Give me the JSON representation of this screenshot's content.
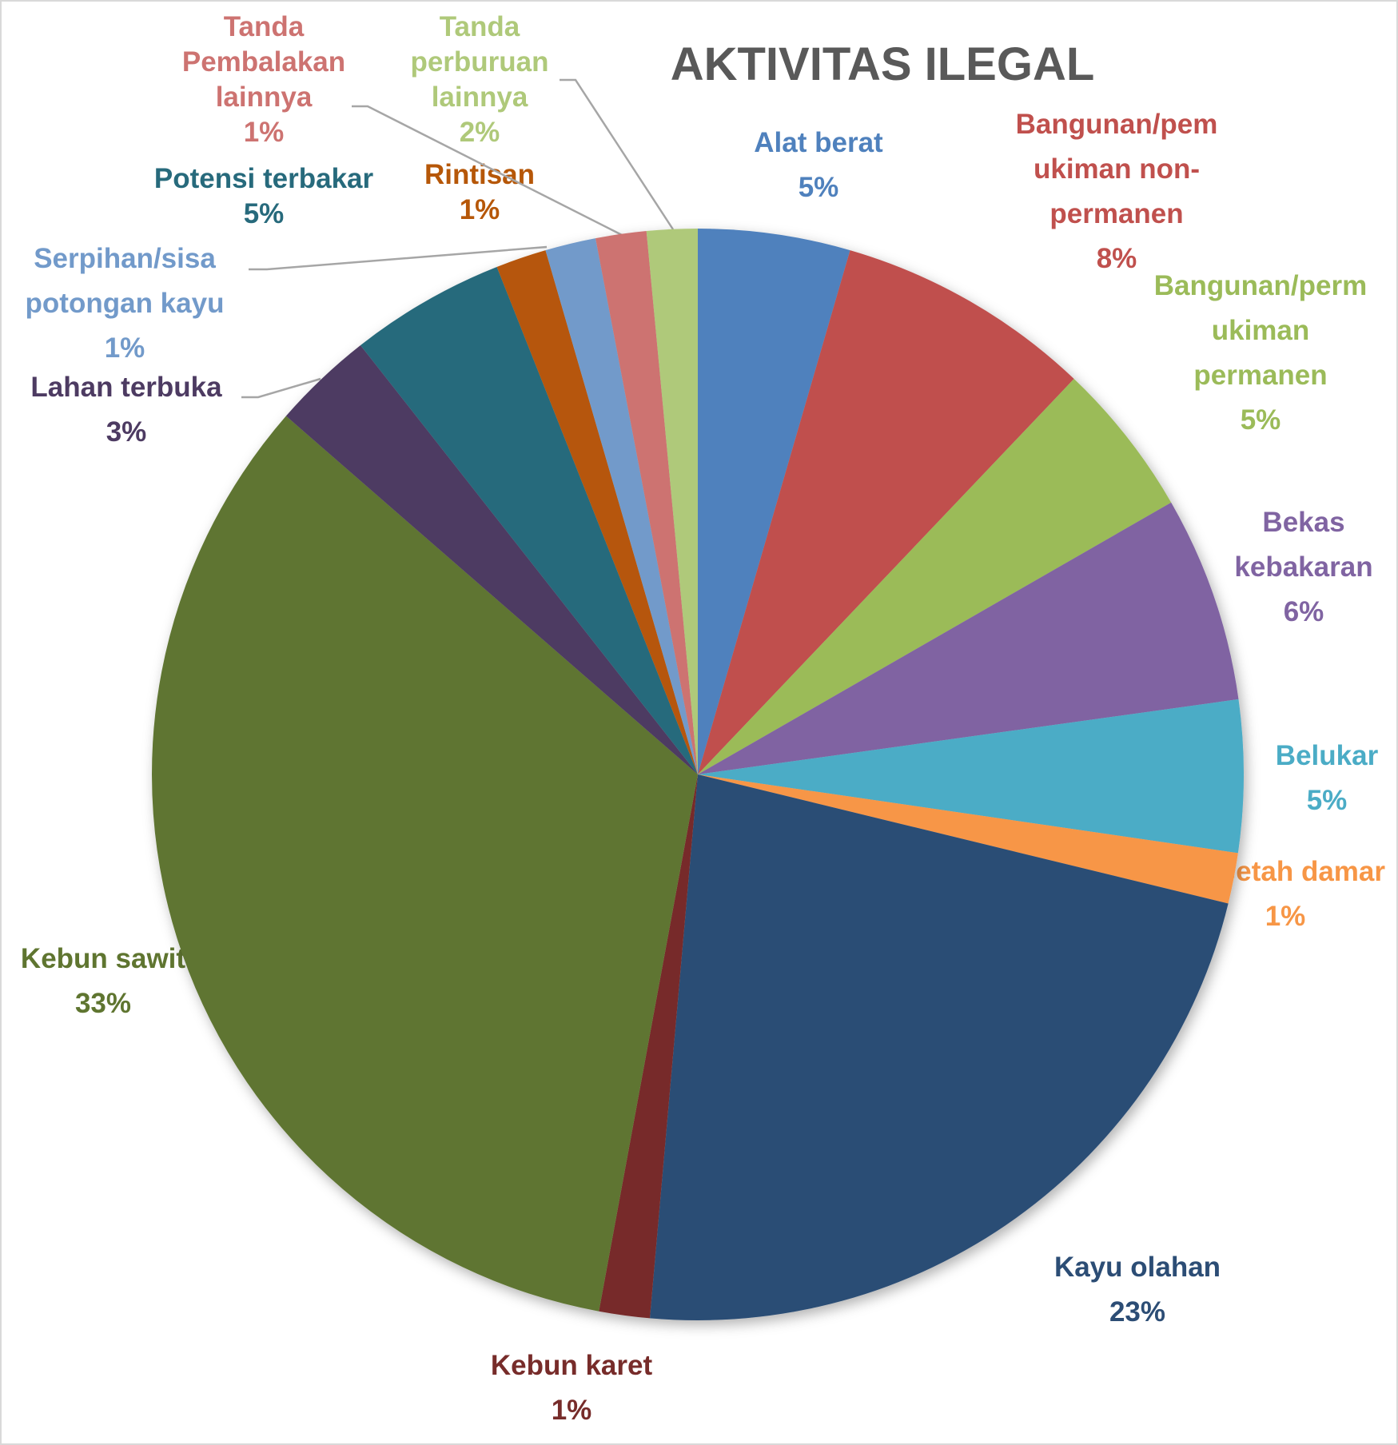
{
  "chart_data": {
    "type": "pie",
    "title": "AKTIVITAS ILEGAL",
    "start": "12 o'clock, clockwise",
    "slices": [
      {
        "label_lines": [
          "Alat berat"
        ],
        "pct_label": "5%",
        "value": 4.5,
        "color": "#4F81BD"
      },
      {
        "label_lines": [
          "Bangunan/pem",
          "ukiman non-",
          "permanen"
        ],
        "pct_label": "8%",
        "value": 7.6,
        "color": "#C0504D"
      },
      {
        "label_lines": [
          "Bangunan/perm",
          "ukiman",
          "permanen"
        ],
        "pct_label": "5%",
        "value": 4.6,
        "color": "#9BBB59"
      },
      {
        "label_lines": [
          "Bekas",
          "kebakaran"
        ],
        "pct_label": "6%",
        "value": 6.1,
        "color": "#8064A2"
      },
      {
        "label_lines": [
          "Belukar"
        ],
        "pct_label": "5%",
        "value": 4.5,
        "color": "#4BACC6"
      },
      {
        "label_lines": [
          "Getah damar"
        ],
        "pct_label": "1%",
        "value": 1.5,
        "color": "#F79646"
      },
      {
        "label_lines": [
          "Kayu olahan"
        ],
        "pct_label": "23%",
        "value": 22.6,
        "color": "#2C4D75"
      },
      {
        "label_lines": [
          "Kebun karet"
        ],
        "pct_label": "1%",
        "value": 1.5,
        "color": "#772C2A"
      },
      {
        "label_lines": [
          "Kebun sawit"
        ],
        "pct_label": "33%",
        "value": 33.5,
        "color": "#5F7530"
      },
      {
        "label_lines": [
          "Lahan terbuka"
        ],
        "pct_label": "3%",
        "value": 3.0,
        "color": "#4D3B62"
      },
      {
        "label_lines": [
          "Potensi terbakar"
        ],
        "pct_label": "5%",
        "value": 4.6,
        "color": "#276A7C"
      },
      {
        "label_lines": [
          "Rintisan"
        ],
        "pct_label": "1%",
        "value": 1.5,
        "color": "#B65708"
      },
      {
        "label_lines": [
          "Serpihan/sisa",
          "potongan kayu"
        ],
        "pct_label": "1%",
        "value": 1.5,
        "color": "#729ACA"
      },
      {
        "label_lines": [
          "Tanda",
          "Pembalakan",
          "lainnya"
        ],
        "pct_label": "1%",
        "value": 1.5,
        "color": "#CD7371"
      },
      {
        "label_lines": [
          "Tanda",
          "perburuan",
          "lainnya"
        ],
        "pct_label": "2%",
        "value": 1.5,
        "color": "#AFC97A"
      }
    ],
    "legend": "none (data labels with leader lines)"
  }
}
